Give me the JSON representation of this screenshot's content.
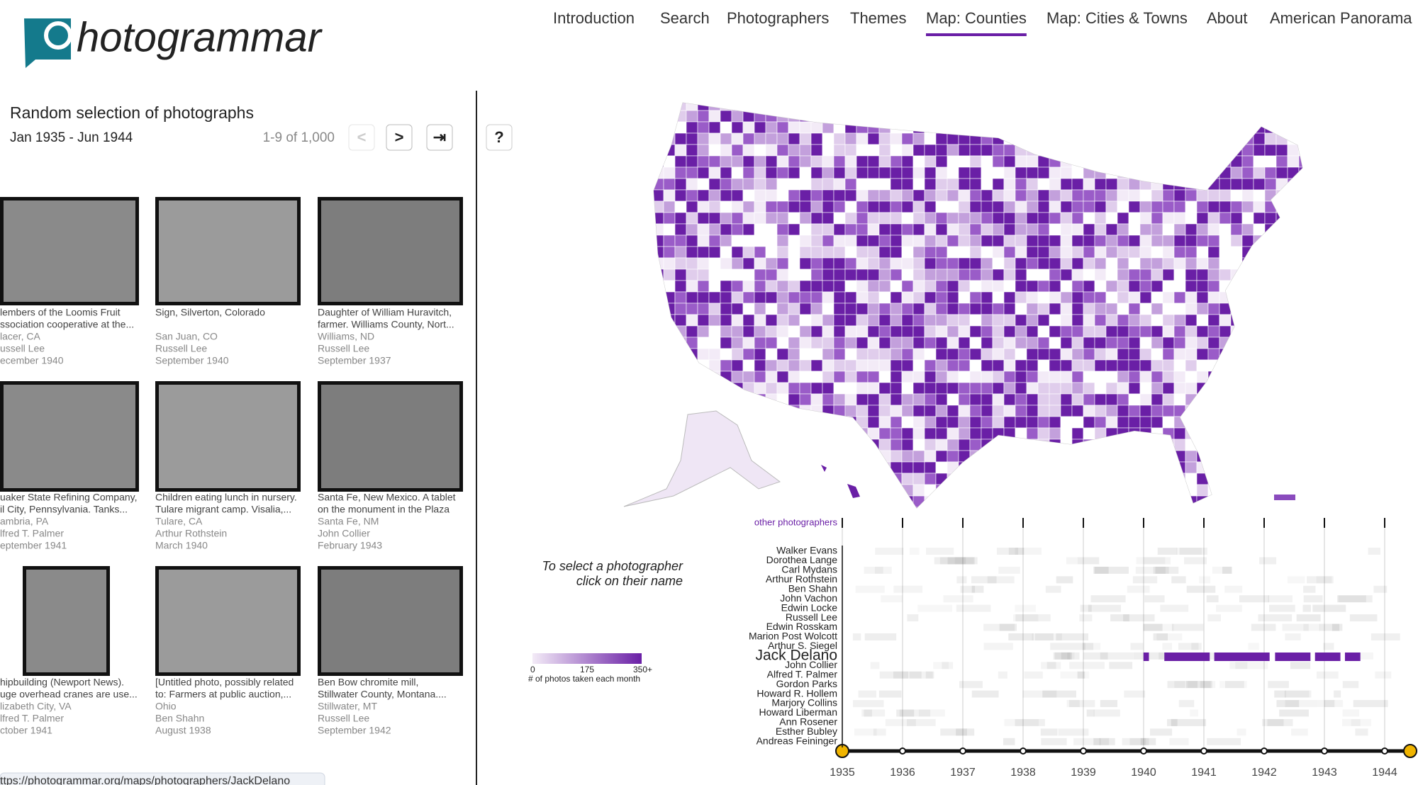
{
  "logo": "hotogrammar",
  "nav": [
    "Introduction",
    "Search",
    "Photographers",
    "Themes",
    "Map: Counties",
    "Map: Cities & Towns",
    "About",
    "American Panorama"
  ],
  "panel": {
    "title": "Random selection of photographs",
    "date_range": "Jan 1935 - Jun 1944",
    "pagination": "1-9 of 1,000",
    "buttons": [
      "<",
      ">",
      "⇥"
    ]
  },
  "help": "?",
  "photos": [
    {
      "title": [
        "lembers of the Loomis Fruit",
        "ssociation cooperative at the..."
      ],
      "place": "lacer, CA",
      "photographer": "ussell Lee",
      "date": "ecember 1940"
    },
    {
      "title": [
        "Sign, Silverton, Colorado"
      ],
      "place": "San Juan, CO",
      "photographer": "Russell Lee",
      "date": "September 1940"
    },
    {
      "title": [
        "Daughter of William Huravitch,",
        "farmer. Williams County, Nort..."
      ],
      "place": "Williams, ND",
      "photographer": "Russell Lee",
      "date": "September 1937"
    },
    {
      "title": [
        "uaker State Refining Company,",
        "il City, Pennsylvania. Tanks..."
      ],
      "place": "ambria, PA",
      "photographer": "lfred T. Palmer",
      "date": "eptember 1941"
    },
    {
      "title": [
        "Children eating lunch in nursery.",
        "Tulare migrant camp. Visalia,..."
      ],
      "place": "Tulare, CA",
      "photographer": "Arthur Rothstein",
      "date": "March 1940"
    },
    {
      "title": [
        "Santa Fe, New Mexico. A tablet",
        "on the monument in the Plaza"
      ],
      "place": "Santa Fe, NM",
      "photographer": "John Collier",
      "date": "February 1943"
    },
    {
      "title": [
        "hipbuilding (Newport News).",
        "uge overhead cranes are use..."
      ],
      "place": "lizabeth City, VA",
      "photographer": "lfred T. Palmer",
      "date": "ctober 1941"
    },
    {
      "title": [
        "[Untitled photo, possibly related",
        "to: Farmers at public auction,..."
      ],
      "place": "Ohio",
      "photographer": "Ben Shahn",
      "date": "August 1938"
    },
    {
      "title": [
        "Ben Bow chromite mill,",
        "Stillwater County, Montana...."
      ],
      "place": "Stillwater, MT",
      "photographer": "Russell Lee",
      "date": "September 1942"
    }
  ],
  "legend": {
    "min": 0,
    "mid": 175,
    "max": "350+",
    "caption": "# of photos taken each month"
  },
  "timeline": {
    "other": "other photographers",
    "instruction": [
      "To select a photographer",
      "click on their name"
    ],
    "photographers": [
      "Walker Evans",
      "Dorothea Lange",
      "Carl Mydans",
      "Arthur Rothstein",
      "Ben Shahn",
      "John Vachon",
      "Edwin Locke",
      "Russell Lee",
      "Edwin Rosskam",
      "Marion Post Wolcott",
      "Arthur S. Siegel",
      "Jack Delano",
      "John Collier",
      "Alfred T. Palmer",
      "Gordon Parks",
      "Howard R. Hollem",
      "Marjory Collins",
      "Howard Liberman",
      "Ann Rosener",
      "Esther Bubley",
      "Andreas Feininger"
    ],
    "years": [
      1935,
      1936,
      1937,
      1938,
      1939,
      1940,
      1941,
      1942,
      1943,
      1944
    ]
  },
  "status_url": "ttps://photogrammar.org/maps/photographers/JackDelano"
}
